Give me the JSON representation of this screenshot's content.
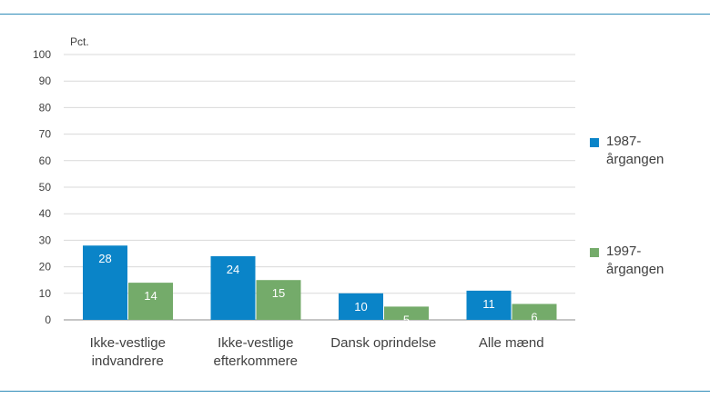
{
  "chart_data": {
    "type": "bar",
    "unit_label": "Pct.",
    "categories": [
      [
        "Ikke-vestlige",
        "indvandrere"
      ],
      [
        "Ikke-vestlige",
        "efterkommere"
      ],
      [
        "Dansk oprindelse"
      ],
      [
        "Alle mænd"
      ]
    ],
    "series": [
      {
        "name": "1987-årgangen",
        "name_lines": [
          "1987-",
          "årgangen"
        ],
        "color": "#0a84c8",
        "values": [
          28,
          24,
          10,
          11
        ]
      },
      {
        "name": "1997-årgangen",
        "name_lines": [
          "1997-",
          "årgangen"
        ],
        "color": "#74ab6a",
        "values": [
          14,
          15,
          5,
          6
        ]
      }
    ],
    "ylim": [
      0,
      100
    ],
    "yticks": [
      0,
      10,
      20,
      30,
      40,
      50,
      60,
      70,
      80,
      90,
      100
    ],
    "grid": true,
    "legend_position": "right"
  }
}
